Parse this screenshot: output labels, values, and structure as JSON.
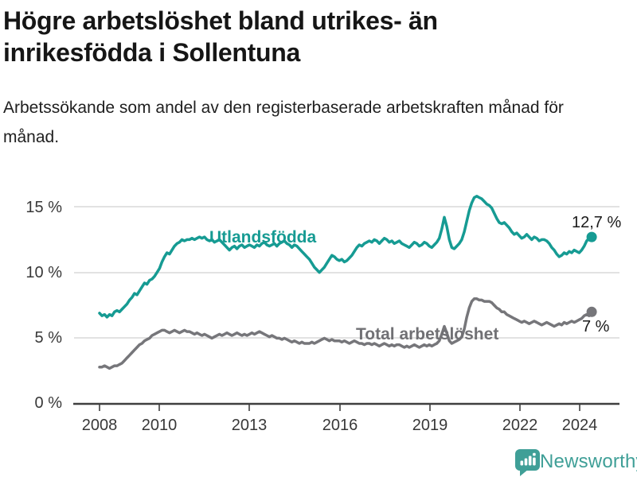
{
  "title": "Högre arbetslöshet bland utrikes- än inrikesfödda i Sollentuna",
  "subtitle": "Arbetssökande som andel av den registerbaserade arbetskraften månad för månad.",
  "branding": {
    "logo_text": "Newsworthy",
    "logo_icon": "bar-chart-speech-bubble-icon",
    "logo_color": "#3f9f97"
  },
  "chart_data": {
    "type": "line",
    "x_start": "2008-01",
    "x_interval": "month",
    "x_tick_labels": [
      "2008",
      "2010",
      "2013",
      "2016",
      "2019",
      "2022",
      "2024"
    ],
    "y_tick_labels": [
      "0 %",
      "5 %",
      "10 %",
      "15 %"
    ],
    "ylim": [
      0,
      16.5
    ],
    "grid": "horizontal",
    "legend_position": "inline-labels",
    "series": [
      {
        "name": "Utlandsfödda",
        "color": "#169b93",
        "end_label": "12,7 %",
        "end_value": 12.7,
        "values": [
          6.9,
          6.7,
          6.8,
          6.6,
          6.8,
          6.7,
          7.0,
          7.1,
          7.0,
          7.2,
          7.4,
          7.6,
          7.9,
          8.1,
          8.4,
          8.3,
          8.6,
          8.9,
          9.2,
          9.1,
          9.4,
          9.5,
          9.7,
          10.0,
          10.3,
          10.8,
          11.2,
          11.5,
          11.4,
          11.7,
          12.0,
          12.2,
          12.3,
          12.5,
          12.4,
          12.5,
          12.5,
          12.6,
          12.5,
          12.6,
          12.7,
          12.6,
          12.7,
          12.5,
          12.4,
          12.5,
          12.3,
          12.4,
          12.5,
          12.3,
          12.1,
          11.9,
          11.7,
          11.9,
          12.0,
          11.8,
          12.0,
          12.1,
          11.9,
          12.0,
          12.1,
          12.0,
          11.9,
          12.1,
          12.0,
          12.2,
          12.3,
          12.1,
          12.0,
          12.1,
          12.2,
          12.0,
          12.2,
          12.3,
          12.4,
          12.2,
          12.1,
          11.9,
          12.1,
          12.0,
          11.8,
          11.6,
          11.4,
          11.2,
          11.0,
          10.7,
          10.4,
          10.2,
          10.0,
          10.2,
          10.4,
          10.7,
          11.0,
          11.3,
          11.2,
          11.0,
          10.9,
          11.0,
          10.8,
          10.9,
          11.1,
          11.3,
          11.6,
          11.9,
          12.1,
          12.0,
          12.2,
          12.3,
          12.4,
          12.3,
          12.5,
          12.4,
          12.2,
          12.4,
          12.6,
          12.5,
          12.3,
          12.4,
          12.2,
          12.3,
          12.4,
          12.2,
          12.1,
          12.0,
          11.9,
          12.1,
          12.3,
          12.2,
          12.0,
          12.1,
          12.3,
          12.2,
          12.0,
          11.9,
          12.1,
          12.3,
          12.6,
          13.3,
          14.2,
          13.5,
          12.5,
          11.9,
          11.8,
          12.0,
          12.2,
          12.5,
          13.1,
          13.9,
          14.7,
          15.3,
          15.7,
          15.8,
          15.7,
          15.6,
          15.4,
          15.2,
          15.1,
          14.9,
          14.5,
          14.1,
          13.8,
          13.7,
          13.8,
          13.6,
          13.4,
          13.1,
          12.9,
          13.0,
          12.8,
          12.6,
          12.7,
          12.9,
          12.7,
          12.5,
          12.7,
          12.6,
          12.4,
          12.5,
          12.5,
          12.4,
          12.2,
          11.9,
          11.7,
          11.4,
          11.2,
          11.3,
          11.5,
          11.4,
          11.6,
          11.5,
          11.7,
          11.6,
          11.5,
          11.7,
          12.0,
          12.4,
          12.6,
          12.7
        ]
      },
      {
        "name": "Total arbetslöshet",
        "color": "#76767a",
        "end_label": "7 %",
        "end_value": 7.0,
        "values": [
          2.8,
          2.8,
          2.9,
          2.8,
          2.7,
          2.8,
          2.9,
          2.9,
          3.0,
          3.1,
          3.3,
          3.5,
          3.7,
          3.9,
          4.1,
          4.3,
          4.5,
          4.6,
          4.8,
          4.9,
          5.0,
          5.2,
          5.3,
          5.4,
          5.5,
          5.6,
          5.6,
          5.5,
          5.4,
          5.5,
          5.6,
          5.5,
          5.4,
          5.5,
          5.6,
          5.5,
          5.5,
          5.4,
          5.3,
          5.4,
          5.3,
          5.2,
          5.3,
          5.2,
          5.1,
          5.0,
          5.1,
          5.2,
          5.3,
          5.2,
          5.3,
          5.4,
          5.3,
          5.2,
          5.3,
          5.4,
          5.3,
          5.2,
          5.3,
          5.2,
          5.3,
          5.4,
          5.3,
          5.4,
          5.5,
          5.4,
          5.3,
          5.2,
          5.1,
          5.2,
          5.1,
          5.0,
          5.0,
          4.9,
          5.0,
          4.9,
          4.8,
          4.7,
          4.8,
          4.7,
          4.6,
          4.7,
          4.6,
          4.6,
          4.6,
          4.7,
          4.6,
          4.7,
          4.8,
          4.9,
          5.0,
          4.9,
          4.8,
          4.9,
          4.8,
          4.8,
          4.8,
          4.7,
          4.8,
          4.7,
          4.6,
          4.7,
          4.8,
          4.7,
          4.6,
          4.6,
          4.5,
          4.6,
          4.6,
          4.5,
          4.6,
          4.5,
          4.4,
          4.5,
          4.6,
          4.5,
          4.4,
          4.5,
          4.4,
          4.5,
          4.5,
          4.4,
          4.3,
          4.4,
          4.3,
          4.4,
          4.5,
          4.4,
          4.3,
          4.4,
          4.5,
          4.4,
          4.5,
          4.4,
          4.5,
          4.6,
          4.8,
          5.3,
          5.9,
          5.4,
          4.8,
          4.6,
          4.7,
          4.8,
          4.9,
          5.1,
          5.7,
          6.6,
          7.3,
          7.8,
          8.0,
          8.0,
          7.9,
          7.9,
          7.8,
          7.8,
          7.8,
          7.7,
          7.5,
          7.3,
          7.2,
          7.0,
          7.0,
          6.8,
          6.7,
          6.6,
          6.5,
          6.4,
          6.3,
          6.2,
          6.3,
          6.2,
          6.1,
          6.2,
          6.3,
          6.2,
          6.1,
          6.0,
          6.1,
          6.2,
          6.1,
          6.0,
          5.9,
          6.0,
          6.1,
          6.0,
          6.2,
          6.1,
          6.2,
          6.3,
          6.2,
          6.3,
          6.4,
          6.5,
          6.7,
          6.8,
          6.7,
          7.0
        ]
      }
    ]
  }
}
